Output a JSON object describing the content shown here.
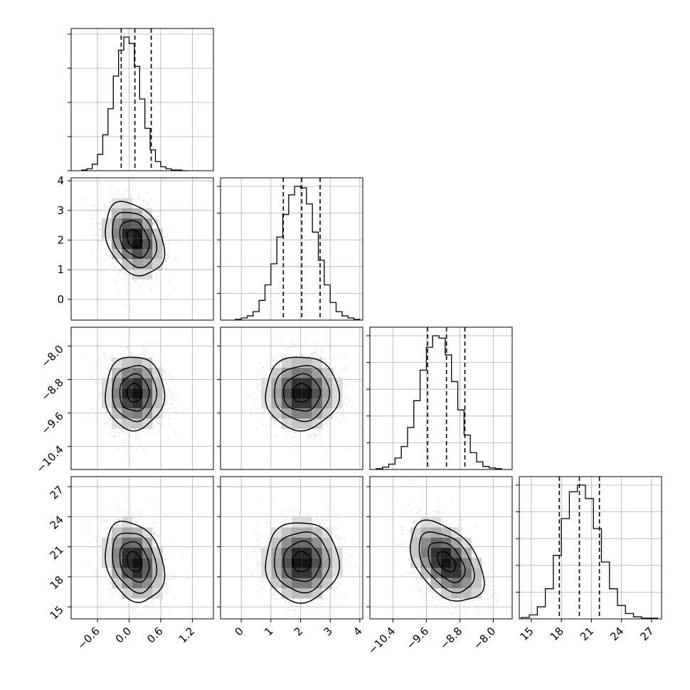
{
  "chart_data": {
    "type": "corner",
    "grid": true,
    "parameters": [
      {
        "range": [
          -1.1,
          1.6
        ],
        "quantiles": [
          -0.15,
          0.11,
          0.42
        ],
        "ticks": [
          -0.6,
          0.0,
          0.6,
          1.2
        ],
        "tick_labels": [
          "−0.6",
          "0.0",
          "0.6",
          "1.2"
        ]
      },
      {
        "range": [
          -0.7,
          4.1
        ],
        "quantiles": [
          1.42,
          2.04,
          2.66
        ],
        "ticks": [
          0,
          1,
          2,
          3,
          4
        ],
        "tick_labels": [
          "0",
          "1",
          "2",
          "3",
          "4"
        ]
      },
      {
        "range": [
          -10.95,
          -7.55
        ],
        "quantiles": [
          -9.57,
          -9.12,
          -8.68
        ],
        "ticks": [
          -10.4,
          -9.6,
          -8.8,
          -8.0
        ],
        "tick_labels": [
          "−10.4",
          "−9.6",
          "−8.8",
          "−8.0"
        ]
      },
      {
        "range": [
          13.8,
          28.0
        ],
        "quantiles": [
          17.8,
          19.8,
          21.8
        ],
        "ticks": [
          15,
          18,
          21,
          24,
          27
        ],
        "tick_labels": [
          "15",
          "18",
          "21",
          "24",
          "27"
        ]
      }
    ],
    "histograms": [
      {
        "bins": [
          -0.9,
          -0.8,
          -0.7,
          -0.6,
          -0.5,
          -0.4,
          -0.3,
          -0.2,
          -0.1,
          0.0,
          0.1,
          0.2,
          0.3,
          0.4,
          0.5,
          0.6,
          0.7,
          0.8,
          0.9,
          1.0,
          1.1
        ],
        "counts": [
          1,
          3,
          10,
          25,
          55,
          95,
          145,
          185,
          205,
          195,
          160,
          110,
          65,
          32,
          14,
          6,
          3,
          1,
          1,
          0
        ]
      },
      {
        "bins": [
          -0.2,
          0.0,
          0.2,
          0.4,
          0.6,
          0.8,
          1.0,
          1.2,
          1.4,
          1.6,
          1.8,
          2.0,
          2.2,
          2.4,
          2.6,
          2.8,
          3.0,
          3.2,
          3.4,
          3.6,
          3.8,
          4.0
        ],
        "counts": [
          1,
          3,
          6,
          12,
          28,
          50,
          80,
          118,
          150,
          178,
          190,
          188,
          165,
          125,
          85,
          50,
          25,
          12,
          6,
          3,
          1
        ]
      },
      {
        "bins": [
          -10.8,
          -10.65,
          -10.5,
          -10.35,
          -10.2,
          -10.05,
          -9.9,
          -9.75,
          -9.6,
          -9.45,
          -9.3,
          -9.15,
          -9.0,
          -8.85,
          -8.7,
          -8.55,
          -8.4,
          -8.25,
          -8.1,
          -7.95,
          -7.8
        ],
        "counts": [
          1,
          3,
          7,
          15,
          30,
          55,
          90,
          130,
          160,
          175,
          172,
          150,
          115,
          78,
          45,
          22,
          10,
          4,
          2,
          1
        ]
      },
      {
        "bins": [
          14.0,
          14.8,
          15.6,
          16.4,
          17.2,
          18.0,
          18.8,
          19.6,
          20.4,
          21.2,
          22.0,
          22.8,
          23.6,
          24.4,
          25.2,
          26.0,
          26.8,
          27.6
        ],
        "counts": [
          2,
          6,
          18,
          45,
          95,
          150,
          190,
          200,
          180,
          135,
          85,
          45,
          20,
          8,
          3,
          1,
          1
        ]
      }
    ],
    "panels_2d": [
      {
        "row": 1,
        "col": 0,
        "center": [
          0.1,
          2.04
        ],
        "sd": [
          0.28,
          0.62
        ],
        "rho": -0.3
      },
      {
        "row": 2,
        "col": 0,
        "center": [
          0.1,
          -9.12
        ],
        "sd": [
          0.28,
          0.44
        ],
        "rho": 0.0
      },
      {
        "row": 2,
        "col": 1,
        "center": [
          2.04,
          -9.12
        ],
        "sd": [
          0.62,
          0.44
        ],
        "rho": 0.0
      },
      {
        "row": 3,
        "col": 0,
        "center": [
          0.1,
          19.5
        ],
        "sd": [
          0.28,
          2.0
        ],
        "rho": -0.25
      },
      {
        "row": 3,
        "col": 1,
        "center": [
          2.04,
          19.5
        ],
        "sd": [
          0.62,
          2.0
        ],
        "rho": 0.0
      },
      {
        "row": 3,
        "col": 2,
        "center": [
          -9.12,
          19.5
        ],
        "sd": [
          0.44,
          2.0
        ],
        "rho": -0.45
      }
    ],
    "contour_levels_sigma": [
      0.5,
      1.0,
      1.5,
      2.0
    ]
  }
}
